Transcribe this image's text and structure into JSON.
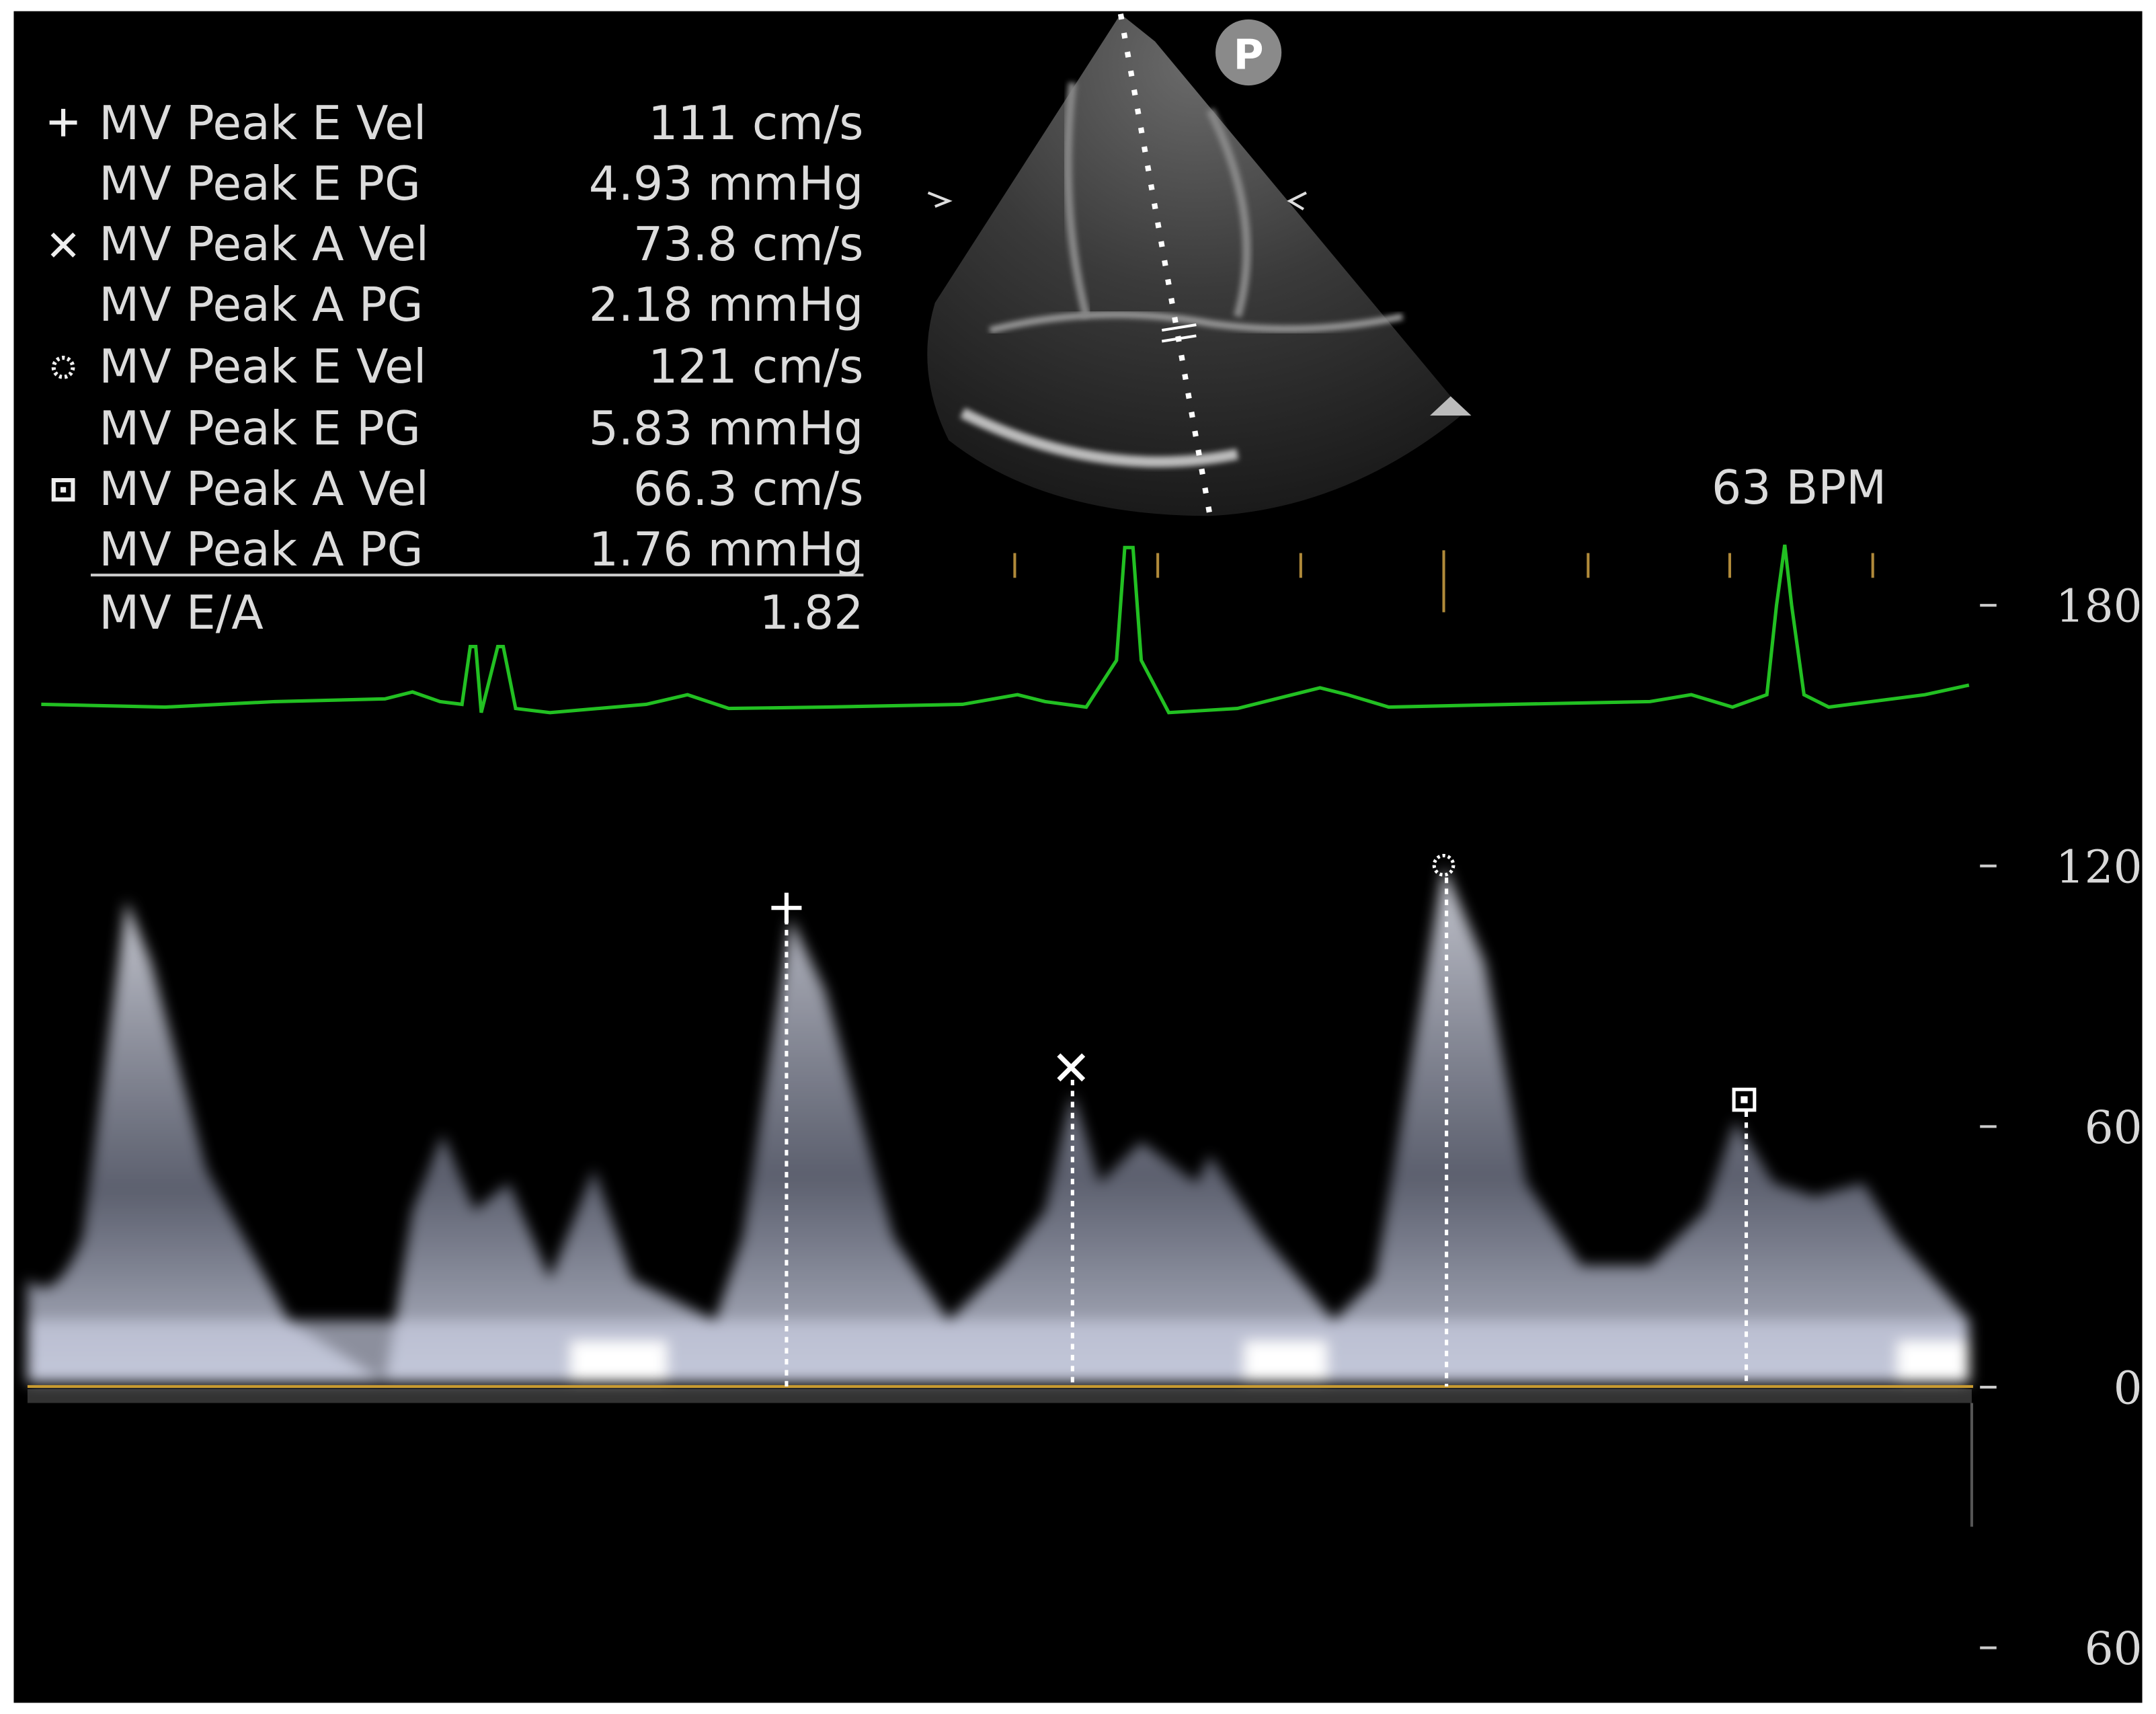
{
  "header": {
    "badge": "P",
    "heart_rate": "63 BPM"
  },
  "measurements": {
    "rows": [
      [
        "MV Peak E Vel",
        "111 cm/s"
      ],
      [
        "MV Peak E PG",
        "4.93 mmHg"
      ],
      [
        "MV Peak A Vel",
        "73.8 cm/s"
      ],
      [
        "MV Peak A PG",
        "2.18 mmHg"
      ],
      [
        "MV Peak E Vel",
        "121 cm/s"
      ],
      [
        "MV Peak E PG",
        "5.83 mmHg"
      ],
      [
        "MV Peak A Vel",
        "66.3 cm/s"
      ],
      [
        "MV Peak A PG",
        "1.76 mmHg"
      ]
    ],
    "summary": [
      "MV E/A",
      "1.82"
    ]
  },
  "scale": {
    "labels": [
      "180",
      "120",
      "60",
      "0",
      "60"
    ]
  }
}
